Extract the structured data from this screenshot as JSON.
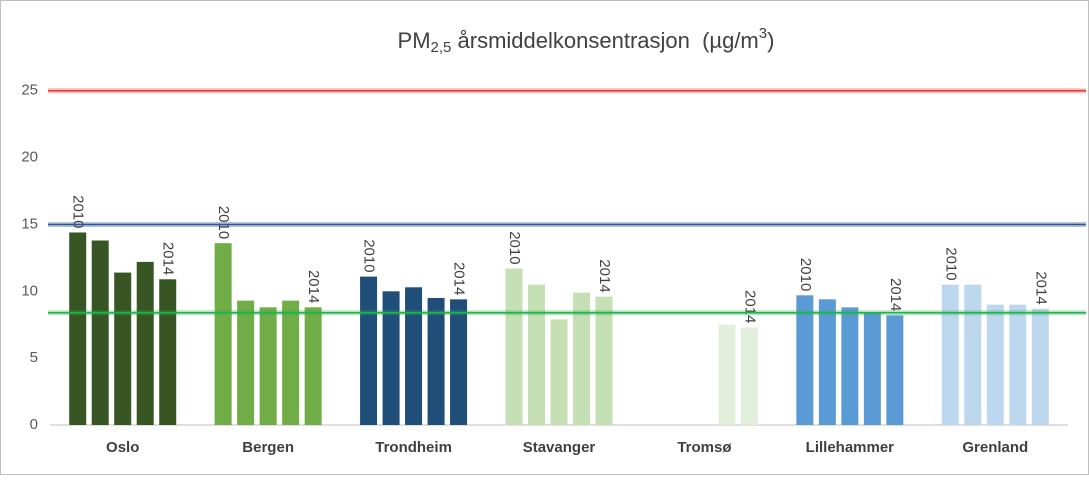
{
  "chart_data": {
    "type": "grouped-bar",
    "title": {
      "main": "PM",
      "sub": "2,5",
      "rest": " årsmiddelkonsentrasjon  (µg/m",
      "sup": "3",
      "end": ")"
    },
    "year_labels": [
      "2010",
      null,
      null,
      null,
      "2014"
    ],
    "groups": [
      {
        "name": "Oslo",
        "color": "#375623",
        "values": [
          14.4,
          13.8,
          11.4,
          12.2,
          10.9
        ]
      },
      {
        "name": "Bergen",
        "color": "#70ad47",
        "values": [
          13.6,
          9.3,
          8.8,
          9.3,
          8.8
        ]
      },
      {
        "name": "Trondheim",
        "color": "#1f4e79",
        "values": [
          11.1,
          10.0,
          10.3,
          9.5,
          9.4
        ]
      },
      {
        "name": "Stavanger",
        "color": "#c5e0b4",
        "values": [
          11.7,
          10.5,
          7.9,
          9.9,
          9.6
        ]
      },
      {
        "name": "Tromsø",
        "color": "#e2efda",
        "values": [
          null,
          null,
          null,
          7.5,
          7.3
        ]
      },
      {
        "name": "Lillehammer",
        "color": "#5b9bd5",
        "values": [
          9.7,
          9.4,
          8.8,
          8.4,
          8.2
        ]
      },
      {
        "name": "Grenland",
        "color": "#bdd7ee",
        "values": [
          10.5,
          10.5,
          9.0,
          9.0,
          8.7
        ]
      }
    ],
    "reference_lines": [
      {
        "value": 25,
        "color": "#e8393b"
      },
      {
        "value": 15,
        "color": "#2e5597"
      },
      {
        "value": 8.4,
        "color": "#22b14c"
      }
    ],
    "ylim": [
      0,
      27
    ],
    "yticks": [
      0,
      5,
      10,
      15,
      20,
      25
    ]
  }
}
